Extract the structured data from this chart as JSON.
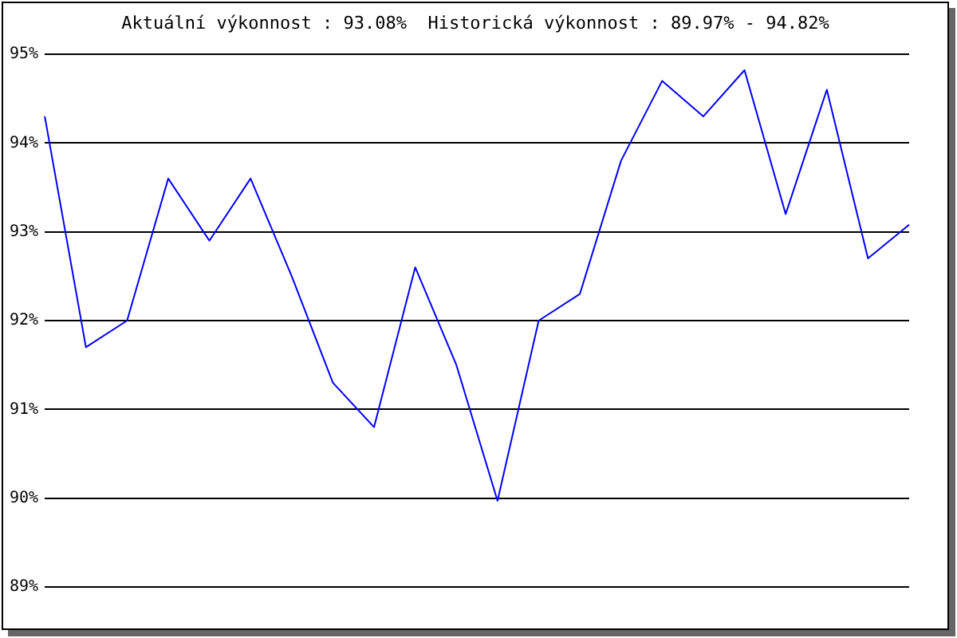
{
  "chart_data": {
    "type": "line",
    "title": "Aktuální výkonnost : 93.08%  Historická výkonnost : 89.97% - 94.82%",
    "categories": [
      null,
      null,
      null,
      null,
      null,
      null,
      null,
      null,
      null,
      null,
      null,
      null,
      null,
      null,
      null,
      null,
      null,
      null,
      null,
      null,
      null,
      null
    ],
    "series": [
      {
        "color": "#0000ff",
        "values": [
          94.3,
          91.7,
          92.0,
          93.6,
          92.9,
          93.6,
          92.5,
          91.3,
          90.8,
          92.6,
          91.5,
          89.97,
          92.0,
          92.3,
          93.8,
          94.7,
          94.3,
          94.82,
          93.2,
          94.6,
          92.7,
          93.08
        ]
      }
    ],
    "ylim": [
      89,
      95
    ],
    "yticks": [
      {
        "value": 89,
        "label": "89%"
      },
      {
        "value": 90,
        "label": "90%"
      },
      {
        "value": 91,
        "label": "91%"
      },
      {
        "value": 92,
        "label": "92%"
      },
      {
        "value": 93,
        "label": "93%"
      },
      {
        "value": 94,
        "label": "94%"
      },
      {
        "value": 95,
        "label": "95%"
      }
    ],
    "grid": "y",
    "legend": false,
    "tick_labels": "y",
    "marker": "none",
    "line_style": "solid"
  }
}
